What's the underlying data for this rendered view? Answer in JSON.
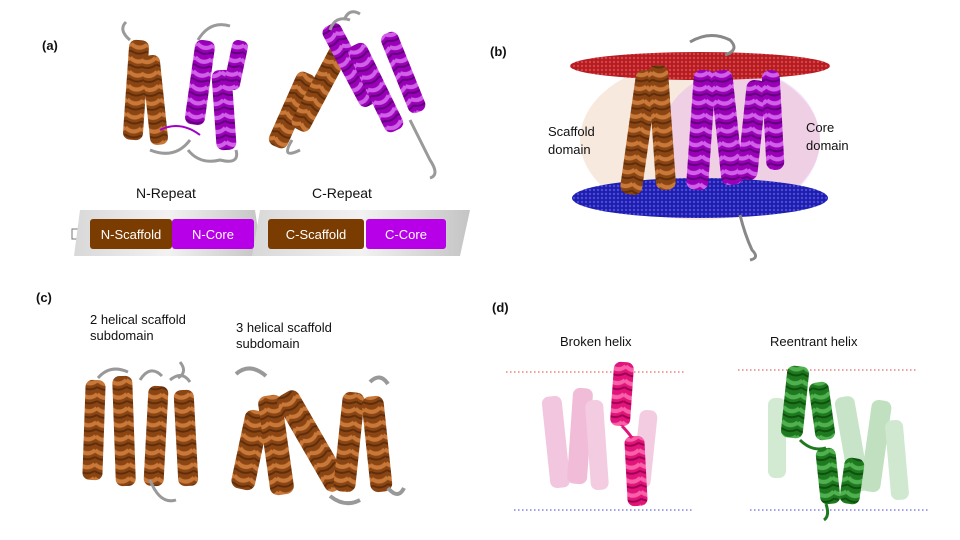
{
  "panels": {
    "a": {
      "label": "(a)",
      "n_repeat": "N-Repeat",
      "c_repeat": "C-Repeat",
      "boxes": [
        "N-Scaffold",
        "N-Core",
        "C-Scaffold",
        "C-Core"
      ]
    },
    "b": {
      "label": "(b)",
      "scaffold_label_1": "Scaffold",
      "scaffold_label_2": "domain",
      "core_label_1": "Core",
      "core_label_2": "domain"
    },
    "c": {
      "label": "(c)",
      "left_title_1": "2 helical scaffold",
      "left_title_2": "subdomain",
      "right_title_1": "3 helical scaffold",
      "right_title_2": "subdomain"
    },
    "d": {
      "label": "(d)",
      "left_title": "Broken helix",
      "right_title": "Reentrant helix"
    }
  },
  "colors": {
    "scaffold": "#8B4513",
    "scaffold_light": "#B8652A",
    "core": "#A000C8",
    "core_light": "#D060E8",
    "loop": "#A0A0A0",
    "membrane_top": "#C0262A",
    "membrane_bottom": "#2A2ABF",
    "broken_helix": "#E0147A",
    "broken_helix_light": "#F2C0DC",
    "reentrant_helix": "#1E7A1E",
    "reentrant_helix_light": "#C4E2C4",
    "box_core": "#B700E8",
    "box_scaffold": "#7A3C00"
  }
}
